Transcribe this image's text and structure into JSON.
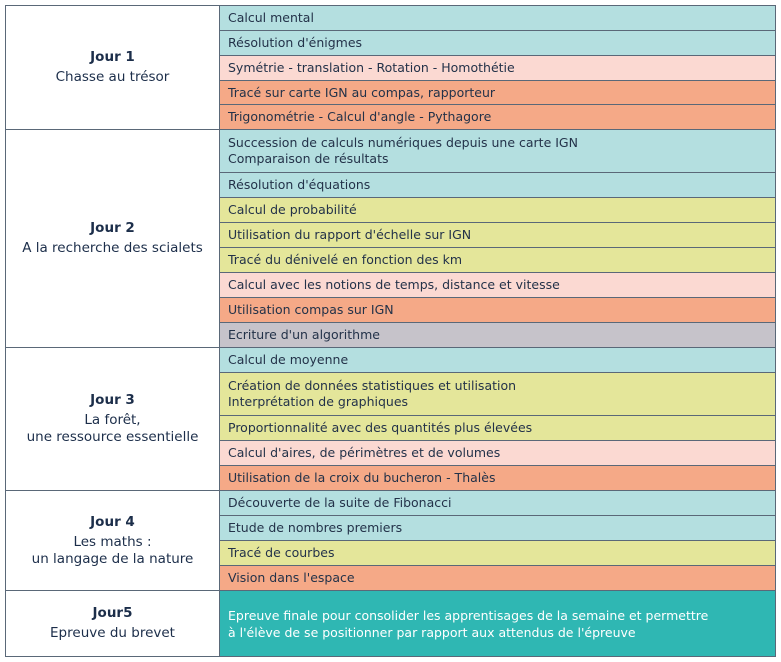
{
  "days": [
    {
      "title": "Jour 1",
      "subtitle": "Chasse au trésor",
      "activities": [
        {
          "text": "Calcul mental",
          "color": "#b4dfe0"
        },
        {
          "text": "Résolution d'énigmes",
          "color": "#b4dfe0"
        },
        {
          "text": "Symétrie - translation - Rotation - Homothétie",
          "color": "#fbd9d2"
        },
        {
          "text": "Tracé sur carte IGN au compas, rapporteur",
          "color": "#f5a987"
        },
        {
          "text": "Trigonométrie - Calcul d'angle - Pythagore",
          "color": "#f5a987"
        }
      ]
    },
    {
      "title": "Jour 2",
      "subtitle": "A la recherche des scialets",
      "activities": [
        {
          "text": "Succession de calculs numériques depuis une carte IGN\nComparaison de résultats",
          "color": "#b4dfe0"
        },
        {
          "text": "Résolution d'équations",
          "color": "#b4dfe0"
        },
        {
          "text": "Calcul de probabilité",
          "color": "#e4e69a"
        },
        {
          "text": "Utilisation du rapport d'échelle sur IGN",
          "color": "#e4e69a"
        },
        {
          "text": "Tracé du dénivelé en fonction des km",
          "color": "#e4e69a"
        },
        {
          "text": "Calcul avec les notions de temps, distance et vitesse",
          "color": "#fbd9d2"
        },
        {
          "text": "Utilisation compas sur IGN",
          "color": "#f5a987"
        },
        {
          "text": "Ecriture d'un algorithme",
          "color": "#c6c3ca"
        }
      ]
    },
    {
      "title": "Jour 3",
      "subtitle": "La forêt,\nune ressource essentielle",
      "activities": [
        {
          "text": "Calcul de moyenne",
          "color": "#b4dfe0"
        },
        {
          "text": "Création de données statistiques et utilisation\nInterprétation de graphiques",
          "color": "#e4e69a"
        },
        {
          "text": "Proportionnalité avec des quantités plus élevées",
          "color": "#e4e69a"
        },
        {
          "text": "Calcul d'aires, de périmètres et de volumes",
          "color": "#fbd9d2"
        },
        {
          "text": "Utilisation de la croix du bucheron - Thalès",
          "color": "#f5a987"
        }
      ]
    },
    {
      "title": "Jour 4",
      "subtitle": "Les maths :\nun langage de la nature",
      "activities": [
        {
          "text": "Découverte de la suite de Fibonacci",
          "color": "#b4dfe0"
        },
        {
          "text": "Etude de nombres premiers",
          "color": "#b4dfe0"
        },
        {
          "text": "Tracé de courbes",
          "color": "#e4e69a"
        },
        {
          "text": "Vision dans l'espace",
          "color": "#f5a987"
        }
      ]
    },
    {
      "title": "Jour5",
      "subtitle": "Epreuve du brevet",
      "activities": [
        {
          "text": "Epreuve finale pour consolider les apprentisages de la semaine et permettre\nà l'élève de se positionner par rapport aux attendus de l'épreuve",
          "color": "#2fb7b3"
        }
      ]
    }
  ]
}
